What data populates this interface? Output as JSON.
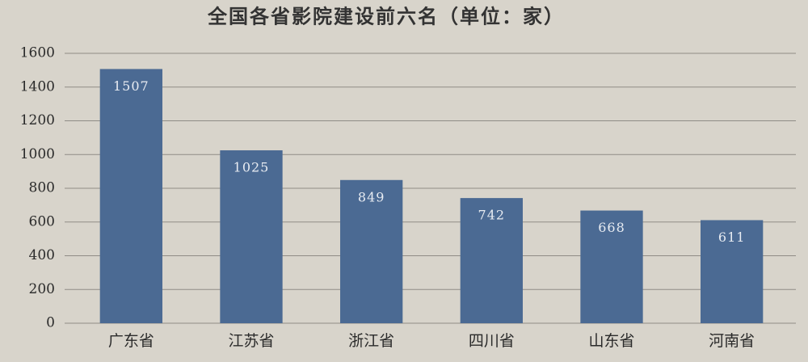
{
  "chart_data": {
    "type": "bar",
    "title": "全国各省影院建设前六名（单位：家）",
    "categories": [
      "广东省",
      "江苏省",
      "浙江省",
      "四川省",
      "山东省",
      "河南省"
    ],
    "values": [
      1507,
      1025,
      849,
      742,
      668,
      611
    ],
    "color": "#4b6a93",
    "ylim": [
      0,
      1600
    ],
    "yticks": [
      0,
      200,
      400,
      600,
      800,
      1000,
      1200,
      1400,
      1600
    ],
    "grid": true
  }
}
